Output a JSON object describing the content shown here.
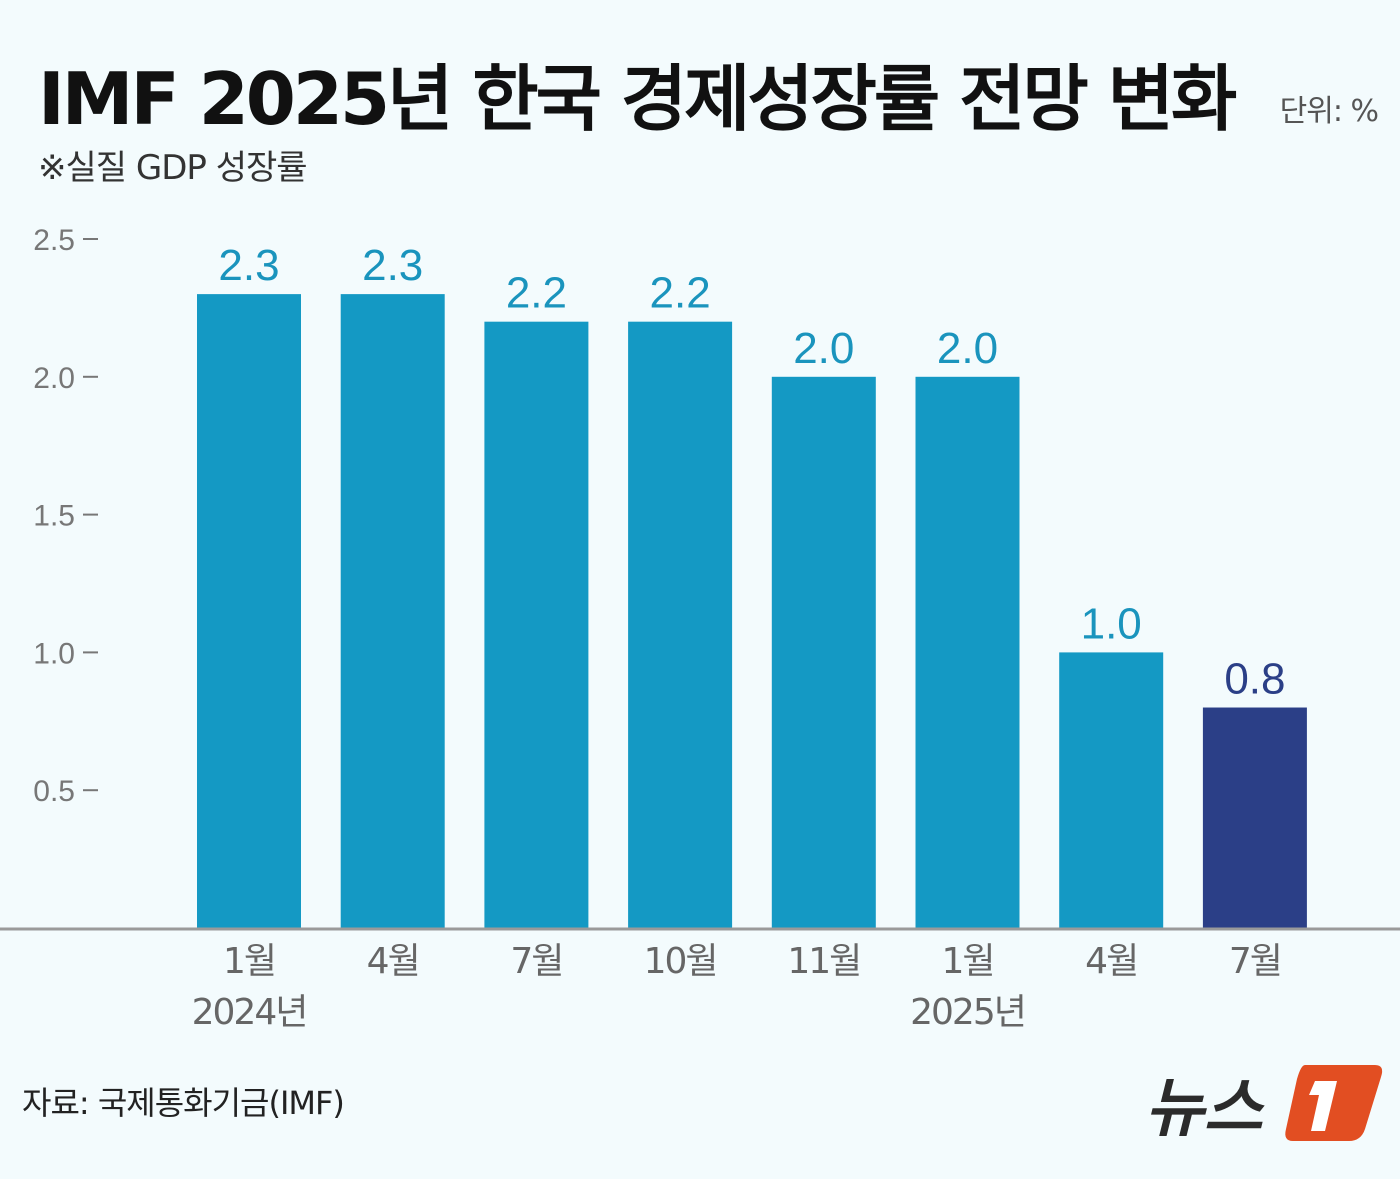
{
  "title": "IMF 2025년 한국 경제성장률 전망 변화",
  "unit_label": "단위: %",
  "subtitle": "※실질 GDP 성장률",
  "source": "자료: 국제통화기금(IMF)",
  "logo_text": "뉴스1",
  "colors": {
    "bar": "#1499c4",
    "highlight_bar": "#2b3f87",
    "label": "#1a94bd",
    "highlight_label": "#2b3f87",
    "axis_text": "#777777",
    "background": "#f3fbfd",
    "logo_orange": "#e24e22"
  },
  "chart_data": {
    "type": "bar",
    "title": "IMF 2025년 한국 경제성장률 전망 변화",
    "subtitle": "※실질 GDP 성장률",
    "unit": "%",
    "categories": [
      "1월",
      "4월",
      "7월",
      "10월",
      "11월",
      "1월",
      "4월",
      "7월"
    ],
    "category_groups": [
      {
        "label": "2024년",
        "index": 0
      },
      {
        "label": "2025년",
        "index": 5
      }
    ],
    "values": [
      2.3,
      2.3,
      2.2,
      2.2,
      2.0,
      2.0,
      1.0,
      0.8
    ],
    "value_labels": [
      "2.3",
      "2.3",
      "2.2",
      "2.2",
      "2.0",
      "2.0",
      "1.0",
      "0.8"
    ],
    "highlight_index": 7,
    "yticks": [
      "0.5",
      "1.0",
      "1.5",
      "2.0",
      "2.5"
    ],
    "ylim": [
      0,
      2.5
    ],
    "grid": false
  }
}
